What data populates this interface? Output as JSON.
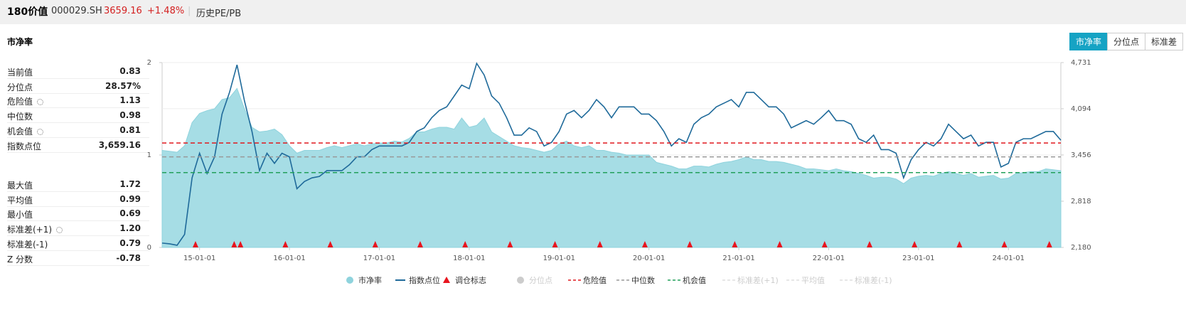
{
  "header": {
    "name": "180价值",
    "code": "000029.SH",
    "price": "3659.16",
    "change": "+1.48%",
    "section": "历史PE/PB"
  },
  "panel_title": "市净率",
  "tabs": [
    {
      "label": "市净率",
      "active": true
    },
    {
      "label": "分位点",
      "active": false
    },
    {
      "label": "标准差",
      "active": false
    }
  ],
  "stats": [
    [
      {
        "label": "当前值",
        "value": "0.83"
      },
      {
        "label": "分位点",
        "value": "28.57%"
      },
      {
        "label": "危险值",
        "value": "1.13",
        "settings_icon": true
      },
      {
        "label": "中位数",
        "value": "0.98"
      },
      {
        "label": "机会值",
        "value": "0.81",
        "settings_icon": true
      },
      {
        "label": "指数点位",
        "value": "3,659.16"
      }
    ],
    [
      {
        "label": "最大值",
        "value": "1.72"
      },
      {
        "label": "平均值",
        "value": "0.99"
      },
      {
        "label": "最小值",
        "value": "0.69"
      },
      {
        "label": "标准差(+1)",
        "value": "1.20",
        "settings_icon": true
      },
      {
        "label": "标准差(-1)",
        "value": "0.79"
      },
      {
        "label": "Z 分数",
        "value": "-0.78"
      }
    ]
  ],
  "chart_data": {
    "type": "line",
    "x": [
      "14-08-01",
      "14-09-01",
      "14-10-01",
      "14-11-01",
      "14-12-01",
      "15-01-01",
      "15-02-01",
      "15-03-01",
      "15-04-01",
      "15-05-01",
      "15-06-01",
      "15-07-01",
      "15-08-01",
      "15-09-01",
      "15-10-01",
      "15-11-01",
      "15-12-01",
      "16-01-01",
      "16-02-01",
      "16-03-01",
      "16-04-01",
      "16-05-01",
      "16-06-01",
      "16-07-01",
      "16-08-01",
      "16-09-01",
      "16-10-01",
      "16-11-01",
      "16-12-01",
      "17-01-01",
      "17-02-01",
      "17-03-01",
      "17-04-01",
      "17-05-01",
      "17-06-01",
      "17-07-01",
      "17-08-01",
      "17-09-01",
      "17-10-01",
      "17-11-01",
      "17-12-01",
      "18-01-01",
      "18-02-01",
      "18-03-01",
      "18-04-01",
      "18-05-01",
      "18-06-01",
      "18-07-01",
      "18-08-01",
      "18-09-01",
      "18-10-01",
      "18-11-01",
      "18-12-01",
      "19-01-01",
      "19-02-01",
      "19-03-01",
      "19-04-01",
      "19-05-01",
      "19-06-01",
      "19-07-01",
      "19-08-01",
      "19-09-01",
      "19-10-01",
      "19-11-01",
      "19-12-01",
      "20-01-01",
      "20-02-01",
      "20-03-01",
      "20-04-01",
      "20-05-01",
      "20-06-01",
      "20-07-01",
      "20-08-01",
      "20-09-01",
      "20-10-01",
      "20-11-01",
      "20-12-01",
      "21-01-01",
      "21-02-01",
      "21-03-01",
      "21-04-01",
      "21-05-01",
      "21-06-01",
      "21-07-01",
      "21-08-01",
      "21-09-01",
      "21-10-01",
      "21-11-01",
      "21-12-01",
      "22-01-01",
      "22-02-01",
      "22-03-01",
      "22-04-01",
      "22-05-01",
      "22-06-01",
      "22-07-01",
      "22-08-01",
      "22-09-01",
      "22-10-01",
      "22-11-01",
      "22-12-01",
      "23-01-01",
      "23-02-01",
      "23-03-01",
      "23-04-01",
      "23-05-01",
      "23-06-01",
      "23-07-01",
      "23-08-01",
      "23-09-01",
      "23-10-01",
      "23-11-01",
      "23-12-01",
      "24-01-01",
      "24-02-01",
      "24-03-01",
      "24-04-01",
      "24-05-01",
      "24-06-01",
      "24-07-01",
      "24-08-01"
    ],
    "xlim": [
      "14-08-01",
      "24-08-01"
    ],
    "xticks": [
      "15-01-01",
      "16-01-01",
      "17-01-01",
      "18-01-01",
      "19-01-01",
      "20-01-01",
      "21-01-01",
      "22-01-01",
      "23-01-01",
      "24-01-01"
    ],
    "ylim": [
      0,
      2
    ],
    "yticks": [
      0,
      1,
      2
    ],
    "y2lim": [
      2180,
      4731
    ],
    "y2ticks": [
      {
        "value": 2180,
        "label": "2,180"
      },
      {
        "value": 2818,
        "label": "2,818"
      },
      {
        "value": 3456,
        "label": "3,456"
      },
      {
        "value": 4094,
        "label": "4,094"
      },
      {
        "value": 4731,
        "label": "4,731"
      }
    ],
    "grid": true,
    "series": [
      {
        "name": "市净率",
        "kind": "area",
        "color": "#8fd3dd",
        "values": [
          1.05,
          1.04,
          1.03,
          1.1,
          1.35,
          1.45,
          1.48,
          1.5,
          1.6,
          1.62,
          1.72,
          1.5,
          1.3,
          1.25,
          1.26,
          1.28,
          1.22,
          1.1,
          1.02,
          1.05,
          1.05,
          1.05,
          1.08,
          1.1,
          1.08,
          1.1,
          1.12,
          1.1,
          1.12,
          1.13,
          1.13,
          1.15,
          1.14,
          1.18,
          1.25,
          1.25,
          1.28,
          1.3,
          1.3,
          1.28,
          1.4,
          1.3,
          1.32,
          1.4,
          1.25,
          1.2,
          1.15,
          1.1,
          1.08,
          1.07,
          1.05,
          1.03,
          1.05,
          1.12,
          1.15,
          1.1,
          1.08,
          1.1,
          1.05,
          1.05,
          1.03,
          1.02,
          1.0,
          1.0,
          1.0,
          1.0,
          0.92,
          0.9,
          0.88,
          0.85,
          0.85,
          0.88,
          0.88,
          0.87,
          0.9,
          0.92,
          0.93,
          0.95,
          0.98,
          0.95,
          0.95,
          0.93,
          0.93,
          0.92,
          0.9,
          0.88,
          0.85,
          0.85,
          0.84,
          0.83,
          0.85,
          0.83,
          0.82,
          0.8,
          0.78,
          0.75,
          0.76,
          0.76,
          0.74,
          0.69,
          0.75,
          0.77,
          0.78,
          0.77,
          0.8,
          0.82,
          0.8,
          0.78,
          0.8,
          0.76,
          0.77,
          0.78,
          0.74,
          0.75,
          0.8,
          0.81,
          0.82,
          0.82,
          0.85,
          0.84,
          0.83
        ]
      },
      {
        "name": "指数点位",
        "kind": "line",
        "axis": "y2",
        "color": "#1f6a9a",
        "values": [
          2240,
          2230,
          2210,
          2360,
          3140,
          3480,
          3200,
          3430,
          4020,
          4320,
          4700,
          4200,
          3780,
          3240,
          3480,
          3340,
          3480,
          3430,
          2990,
          3090,
          3140,
          3160,
          3240,
          3240,
          3240,
          3320,
          3430,
          3430,
          3530,
          3580,
          3580,
          3580,
          3580,
          3630,
          3780,
          3830,
          3970,
          4070,
          4120,
          4270,
          4420,
          4370,
          4720,
          4560,
          4270,
          4170,
          3970,
          3730,
          3730,
          3830,
          3780,
          3580,
          3630,
          3780,
          4020,
          4070,
          3970,
          4070,
          4220,
          4120,
          3970,
          4120,
          4120,
          4120,
          4020,
          4020,
          3930,
          3780,
          3580,
          3680,
          3630,
          3880,
          3970,
          4020,
          4120,
          4170,
          4220,
          4120,
          4320,
          4320,
          4220,
          4120,
          4120,
          4020,
          3830,
          3880,
          3930,
          3880,
          3970,
          4070,
          3930,
          3930,
          3880,
          3680,
          3630,
          3730,
          3530,
          3530,
          3480,
          3140,
          3390,
          3530,
          3630,
          3580,
          3680,
          3880,
          3780,
          3680,
          3730,
          3580,
          3630,
          3630,
          3290,
          3340,
          3630,
          3680,
          3680,
          3730,
          3780,
          3780,
          3659
        ]
      },
      {
        "name": "调仓标志",
        "kind": "marker",
        "color": "#e8141e",
        "x": [
          "14-12-15",
          "15-05-20",
          "15-06-15",
          "15-12-15",
          "16-06-15",
          "16-12-15",
          "17-06-15",
          "17-12-15",
          "18-06-15",
          "18-12-15",
          "19-06-15",
          "19-12-15",
          "20-06-15",
          "20-12-15",
          "21-06-15",
          "21-12-15",
          "22-06-15",
          "22-12-15",
          "23-06-15",
          "23-12-15",
          "24-06-15"
        ]
      },
      {
        "name": "分位点",
        "kind": "dot",
        "color": "#cccccc",
        "active": false
      },
      {
        "name": "危险值",
        "kind": "hline",
        "color": "#e0191e",
        "value": 1.13
      },
      {
        "name": "中位数",
        "kind": "hline",
        "color": "#999999",
        "value": 0.98
      },
      {
        "name": "机会值",
        "kind": "hline",
        "color": "#22a05a",
        "value": 0.81
      },
      {
        "name": "标准差(+1)",
        "kind": "hline",
        "color": "#dddddd",
        "active": false
      },
      {
        "name": "平均值",
        "kind": "hline",
        "color": "#dddddd",
        "active": false
      },
      {
        "name": "标准差(-1)",
        "kind": "hline",
        "color": "#dddddd",
        "active": false
      }
    ]
  }
}
